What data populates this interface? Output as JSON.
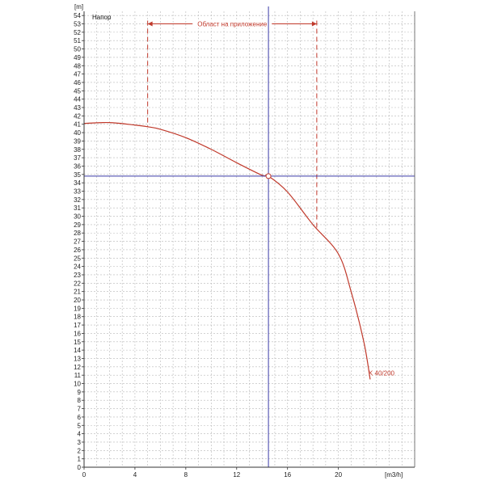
{
  "chart_data": {
    "type": "line",
    "title": "Напор",
    "xlabel": "[m3/h]",
    "ylabel": "[m]",
    "xlim": [
      0,
      26
    ],
    "ylim": [
      0,
      54.5
    ],
    "x_ticks": [
      0,
      4,
      8,
      12,
      16,
      20
    ],
    "y_ticks": [
      0,
      1,
      2,
      3,
      4,
      5,
      6,
      7,
      8,
      9,
      10,
      11,
      12,
      13,
      14,
      15,
      16,
      17,
      18,
      19,
      20,
      21,
      22,
      23,
      24,
      25,
      26,
      27,
      28,
      29,
      30,
      31,
      32,
      33,
      34,
      35,
      36,
      37,
      38,
      39,
      40,
      41,
      42,
      43,
      44,
      45,
      46,
      47,
      48,
      49,
      50,
      51,
      52,
      53,
      54
    ],
    "grid": true,
    "series": [
      {
        "name": "K 40/200",
        "color": "#c0392b",
        "x": [
          0,
          2,
          4,
          5,
          6,
          8,
          10,
          12,
          14,
          14.5,
          16,
          18,
          20,
          21,
          22,
          22.5
        ],
        "y": [
          41.1,
          41.2,
          40.9,
          40.7,
          40.4,
          39.4,
          38.0,
          36.4,
          34.9,
          34.8,
          32.9,
          29.0,
          25.5,
          21.0,
          15.0,
          10.5
        ]
      }
    ],
    "operating_point": {
      "x": 14.5,
      "y": 34.8,
      "color": "#3a3aa8"
    },
    "application_range": {
      "label": "Област на приложение",
      "x_start": 5,
      "x_end": 18.3,
      "y_level": 53,
      "color": "#c0392b"
    }
  }
}
